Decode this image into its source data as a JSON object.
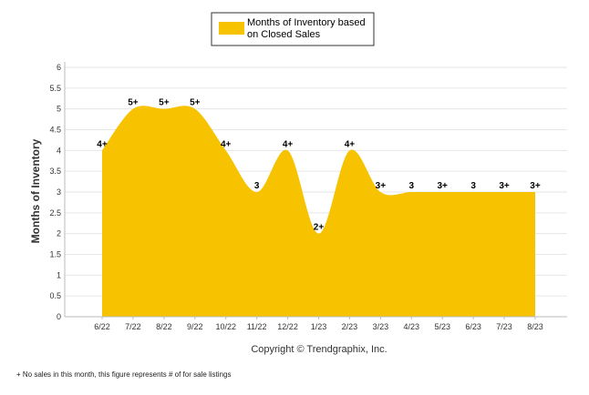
{
  "chart_data": {
    "type": "area",
    "categories": [
      "6/22",
      "7/22",
      "8/22",
      "9/22",
      "10/22",
      "11/22",
      "12/22",
      "1/23",
      "2/23",
      "3/23",
      "4/23",
      "5/23",
      "6/23",
      "7/23",
      "8/23"
    ],
    "series": [
      {
        "name": "Months of Inventory based on Closed Sales",
        "values": [
          4,
          5,
          5,
          5,
          4,
          3,
          4,
          2,
          4,
          3,
          3,
          3,
          3,
          3,
          3
        ],
        "labels": [
          "4+",
          "5+",
          "5+",
          "5+",
          "4+",
          "3",
          "4+",
          "2+",
          "4+",
          "3+",
          "3",
          "3+",
          "3",
          "3+",
          "3+"
        ]
      }
    ],
    "legend_lines": [
      "Months of Inventory based",
      "on Closed Sales"
    ],
    "ylabel": "Months of Inventory",
    "yticks": [
      "0",
      "0.5",
      "1",
      "1.5",
      "2",
      "2.5",
      "3",
      "3.5",
      "4",
      "4.5",
      "5",
      "5.5",
      "6"
    ],
    "ylim": [
      0,
      6
    ],
    "grid": true,
    "legend_position": "top-center",
    "color": "#F7C200"
  },
  "copyright": "Copyright © Trendgraphix, Inc.",
  "footnote": "+  No sales in this month, this figure represents # of for sale listings"
}
